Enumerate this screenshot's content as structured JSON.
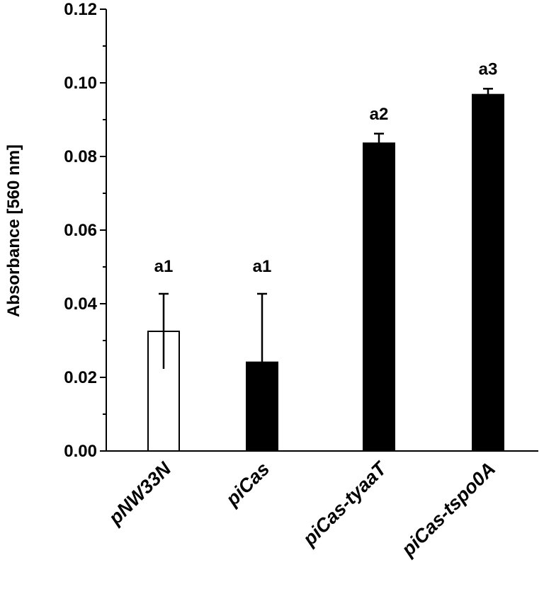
{
  "chart_data": {
    "type": "bar",
    "title": "",
    "xlabel": "",
    "ylabel": "Absorbance [560 nm]",
    "ylim": [
      0,
      0.12
    ],
    "yticks": [
      "0.00",
      "0.02",
      "0.04",
      "0.06",
      "0.08",
      "0.10",
      "0.12"
    ],
    "grid": false,
    "legend": "none",
    "categories": [
      "pNW33N",
      "piCas",
      "piCas-tyaaT",
      "piCas-tspo0A"
    ],
    "values": [
      0.0325,
      0.0241,
      0.0836,
      0.0968
    ],
    "error": [
      0.0102,
      0.0186,
      0.0026,
      0.0016
    ],
    "significance": [
      "a1",
      "a1",
      "a2",
      "a3"
    ],
    "fills": [
      "#ffffff",
      "#000000",
      "#000000",
      "#000000"
    ],
    "bar_outline": "#000000",
    "axis_color": "#000000"
  }
}
